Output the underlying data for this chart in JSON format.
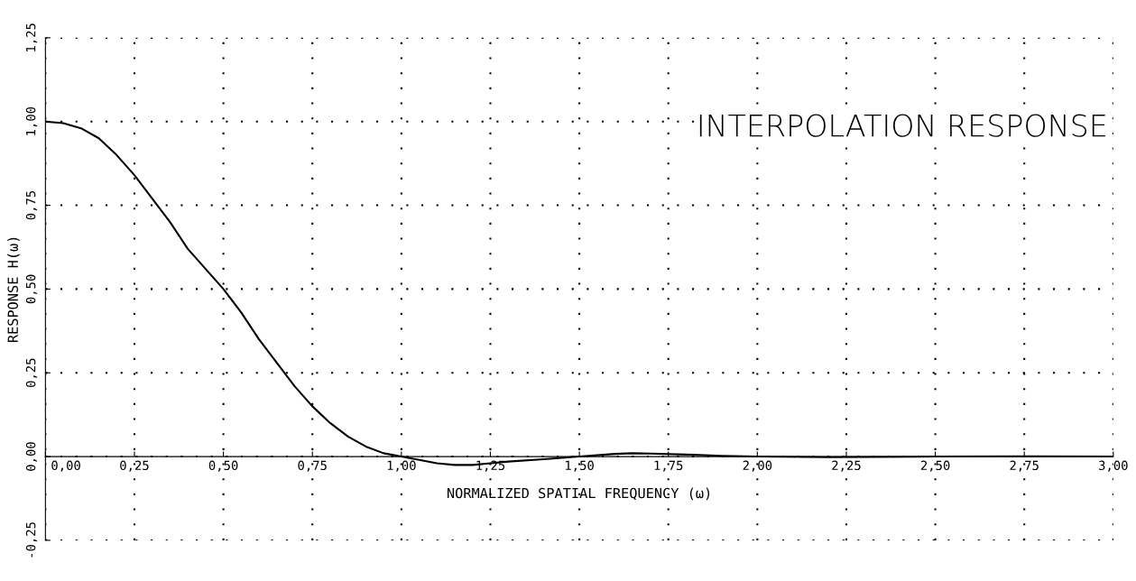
{
  "chart_data": {
    "type": "line",
    "title": "INTERPOLATION RESPONSE",
    "xlabel": "NORMALIZED SPATIAL FREQUENCY (ω)",
    "ylabel": "RESPONSE H(ω)",
    "x": [
      0,
      0.05,
      0.1,
      0.15,
      0.2,
      0.25,
      0.3,
      0.35,
      0.4,
      0.45,
      0.5,
      0.55,
      0.6,
      0.65,
      0.7,
      0.75,
      0.8,
      0.85,
      0.9,
      0.95,
      1.0,
      1.05,
      1.1,
      1.15,
      1.2,
      1.25,
      1.3,
      1.4,
      1.5,
      1.6,
      1.65,
      1.7,
      1.8,
      1.9,
      2.0,
      2.2,
      2.5,
      2.75,
      3.0
    ],
    "series": [
      {
        "color": "#000000",
        "values": [
          1.0,
          0.995,
          0.98,
          0.95,
          0.9,
          0.84,
          0.77,
          0.7,
          0.62,
          0.56,
          0.5,
          0.43,
          0.35,
          0.28,
          0.21,
          0.15,
          0.1,
          0.06,
          0.03,
          0.01,
          0.0,
          -0.01,
          -0.02,
          -0.025,
          -0.025,
          -0.02,
          -0.015,
          -0.008,
          0.0,
          0.008,
          0.01,
          0.009,
          0.006,
          0.002,
          0.0,
          -0.002,
          0.0,
          0.001,
          0.0
        ]
      }
    ],
    "xlim": [
      0,
      3
    ],
    "ylim": [
      -0.25,
      1.25
    ],
    "xticks": [
      {
        "value": 0,
        "label": "0,00"
      },
      {
        "value": 0.25,
        "label": "0,25"
      },
      {
        "value": 0.5,
        "label": "0,50"
      },
      {
        "value": 0.75,
        "label": "0,75"
      },
      {
        "value": 1,
        "label": "1,00"
      },
      {
        "value": 1.25,
        "label": "1,25"
      },
      {
        "value": 1.5,
        "label": "1,50"
      },
      {
        "value": 1.75,
        "label": "1,75"
      },
      {
        "value": 2,
        "label": "2,00"
      },
      {
        "value": 2.25,
        "label": "2,25"
      },
      {
        "value": 2.5,
        "label": "2,50"
      },
      {
        "value": 2.75,
        "label": "2,75"
      },
      {
        "value": 3,
        "label": "3,00"
      }
    ],
    "yticks": [
      {
        "value": -0.25,
        "label": "-0,25"
      },
      {
        "value": 0,
        "label": "0,00"
      },
      {
        "value": 0.25,
        "label": "0,25"
      },
      {
        "value": 0.5,
        "label": "0,50"
      },
      {
        "value": 0.75,
        "label": "0,75"
      },
      {
        "value": 1,
        "label": "1,00"
      },
      {
        "value": 1.25,
        "label": "1,25"
      }
    ],
    "grid": true,
    "marker": "none",
    "line_style": "solid",
    "legend": false
  }
}
